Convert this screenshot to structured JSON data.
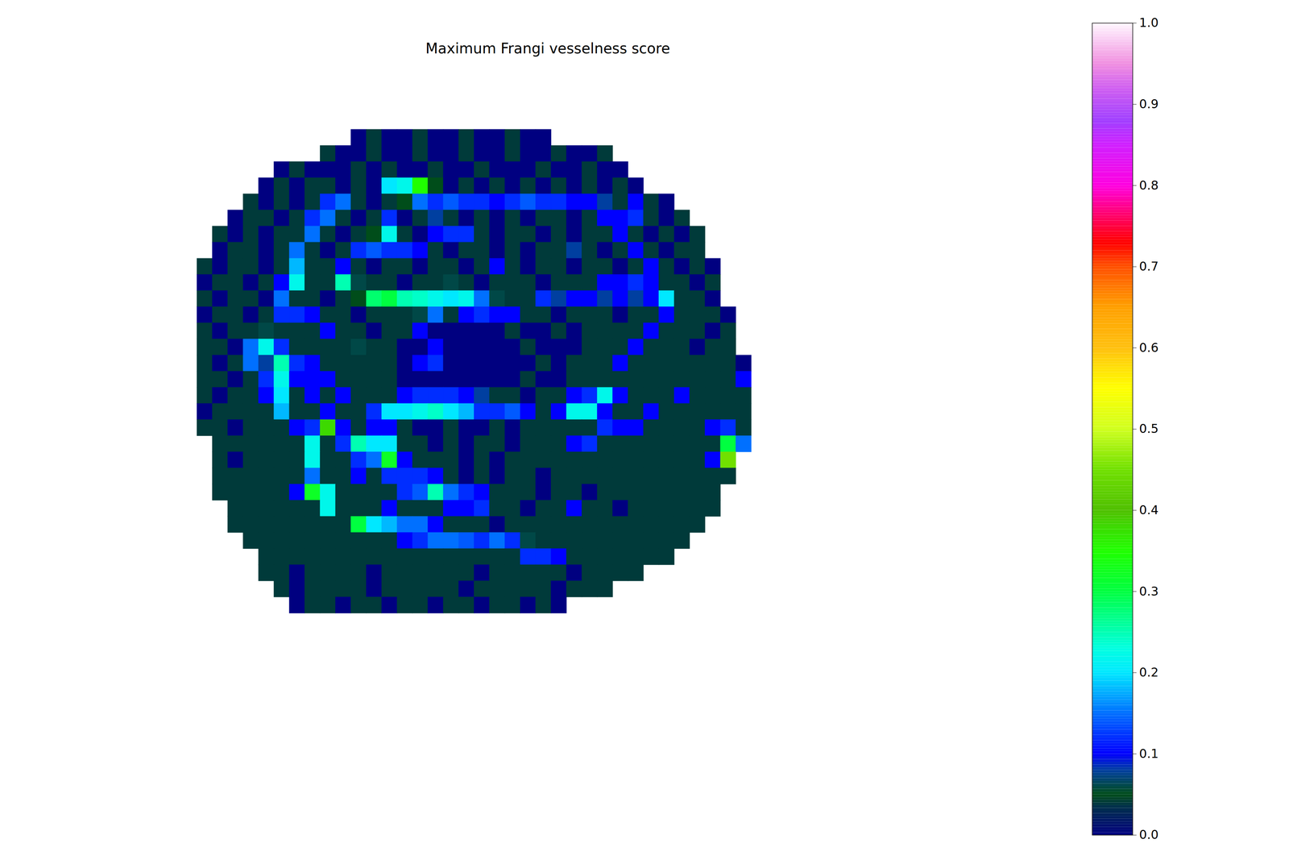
{
  "chart_data": {
    "type": "heatmap",
    "title": "Maximum Frangi vesselness score",
    "tick_labels": false,
    "cells": [
      [
        null,
        null,
        null,
        null,
        null,
        null,
        null,
        null,
        null,
        null,
        0,
        0.04,
        0,
        0,
        0.04,
        0,
        0,
        0.04,
        0,
        0,
        0.04,
        0,
        0,
        null,
        null,
        null,
        null,
        null,
        null,
        null,
        null,
        null,
        null,
        null,
        null,
        null
      ],
      [
        null,
        null,
        null,
        null,
        null,
        null,
        null,
        null,
        0.04,
        0,
        0,
        0.04,
        0,
        0,
        0.04,
        0,
        0,
        0.04,
        0,
        0,
        0.04,
        0,
        0,
        0.04,
        0,
        0,
        0.04,
        null,
        null,
        null,
        null,
        null,
        null,
        null,
        null,
        null
      ],
      [
        null,
        null,
        null,
        null,
        null,
        0,
        0.04,
        0,
        0,
        0,
        0.04,
        0,
        0.04,
        0,
        0,
        0.04,
        0,
        0,
        0.04,
        0,
        0,
        0,
        0.04,
        0,
        0,
        0.04,
        0,
        0,
        null,
        null,
        null,
        null,
        null,
        null,
        null,
        null
      ],
      [
        null,
        null,
        null,
        null,
        0,
        0.04,
        0,
        0.04,
        0.04,
        0,
        0.04,
        0,
        0.2,
        0.22,
        0.35,
        0.05,
        0,
        0.04,
        0,
        0.04,
        0,
        0.04,
        0,
        0.04,
        0,
        0.04,
        0,
        0.04,
        0,
        null,
        null,
        null,
        null,
        null,
        null,
        null
      ],
      [
        null,
        null,
        null,
        0.04,
        0,
        0.04,
        0,
        0.04,
        0.12,
        0.15,
        0.04,
        0,
        0.04,
        0.05,
        0.15,
        0.12,
        0.14,
        0.12,
        0.12,
        0.1,
        0.12,
        0.14,
        0.12,
        0.12,
        0.1,
        0.1,
        0.08,
        0.04,
        0.1,
        0.04,
        0,
        null,
        null,
        null,
        null,
        null
      ],
      [
        null,
        null,
        0,
        0.04,
        0.04,
        0,
        0.04,
        0.12,
        0.15,
        0.04,
        0,
        0.04,
        0.12,
        0,
        0.04,
        0.08,
        0.04,
        0,
        0.04,
        0,
        0.04,
        0,
        0.04,
        0.04,
        0,
        0.04,
        0.1,
        0.1,
        0.12,
        0.04,
        0,
        0.04,
        null,
        null,
        null,
        null
      ],
      [
        null,
        0.04,
        0,
        0.04,
        0,
        0.04,
        0.04,
        0.15,
        0.04,
        0,
        0.04,
        0.05,
        0.22,
        0.04,
        0,
        0.1,
        0.12,
        0.12,
        0.04,
        0,
        0.04,
        0.04,
        0,
        0.04,
        0,
        0.04,
        0.04,
        0.1,
        0.04,
        0,
        0.04,
        0,
        0.04,
        null,
        null,
        null
      ],
      [
        null,
        0,
        0.04,
        0.04,
        0,
        0.04,
        0.15,
        0.04,
        0,
        0.04,
        0.12,
        0.14,
        0.12,
        0.12,
        0.1,
        0.04,
        0,
        0.04,
        0.04,
        0,
        0.04,
        0,
        0.04,
        0.04,
        0.08,
        0.04,
        0,
        0.04,
        0.1,
        0.04,
        0,
        0.04,
        0.04,
        null,
        null,
        null
      ],
      [
        0.04,
        0,
        0.04,
        0.04,
        0,
        0.04,
        0.18,
        0.04,
        0.04,
        0.1,
        0.04,
        0,
        0.04,
        0.04,
        0,
        0.04,
        0.04,
        0,
        0.04,
        0.1,
        0.04,
        0,
        0.04,
        0.04,
        0,
        0.04,
        0.04,
        0,
        0.04,
        0.1,
        0.04,
        0,
        0.04,
        0,
        null,
        null
      ],
      [
        0,
        0.04,
        0.04,
        0,
        0.04,
        0.1,
        0.22,
        0.04,
        0.04,
        0.25,
        0.06,
        0.04,
        0.04,
        0,
        0.04,
        0.04,
        0.06,
        0.04,
        0,
        0.04,
        0.04,
        0.04,
        0,
        0.04,
        0.04,
        0.04,
        0.1,
        0.1,
        0.12,
        0.1,
        0.04,
        0.04,
        0,
        0.04,
        null,
        null
      ],
      [
        0.04,
        0,
        0.04,
        0.04,
        0,
        0.15,
        0.04,
        0.04,
        0,
        0.04,
        0.05,
        0.28,
        0.3,
        0.25,
        0.24,
        0.22,
        0.2,
        0.22,
        0.15,
        0.06,
        0.04,
        0.04,
        0.12,
        0.08,
        0.1,
        0.1,
        0.08,
        0.1,
        0.08,
        0.1,
        0.2,
        0.04,
        0.04,
        0,
        null,
        null
      ],
      [
        0,
        0.04,
        0.04,
        0,
        0.04,
        0.12,
        0.12,
        0.1,
        0.04,
        0.04,
        0,
        0.04,
        0.04,
        0.04,
        0.06,
        0.15,
        0.04,
        0.1,
        0.12,
        0.1,
        0.1,
        0.04,
        0.04,
        0,
        0.04,
        0.04,
        0.04,
        0,
        0.04,
        0.04,
        0.1,
        0.04,
        0.04,
        0.04,
        0,
        null
      ],
      [
        0.04,
        0,
        0.04,
        0.04,
        0.06,
        0.04,
        0.04,
        0.04,
        0.1,
        0.04,
        0.04,
        0,
        0.04,
        0.04,
        0.1,
        0,
        0,
        0,
        0,
        0,
        0.04,
        0,
        0,
        0.04,
        0,
        0.04,
        0.04,
        0.04,
        0.04,
        0.1,
        0.04,
        0.04,
        0.04,
        0,
        0.04,
        null
      ],
      [
        0.04,
        0.04,
        0,
        0.15,
        0.22,
        0.12,
        0.04,
        0.04,
        0.04,
        0.04,
        0.06,
        0.04,
        0.04,
        0,
        0,
        0.1,
        0,
        0,
        0,
        0,
        0,
        0.04,
        0,
        0,
        0,
        0.04,
        0.04,
        0.04,
        0.1,
        0.04,
        0.04,
        0.04,
        0,
        0.04,
        0.04,
        null
      ],
      [
        0.04,
        0,
        0.04,
        0.15,
        0.08,
        0.25,
        0.12,
        0.1,
        0.04,
        0.04,
        0.04,
        0.04,
        0.04,
        0,
        0.1,
        0.12,
        0,
        0,
        0,
        0,
        0,
        0,
        0.04,
        0,
        0.04,
        0.04,
        0.04,
        0.1,
        0.04,
        0.04,
        0.04,
        0.04,
        0.04,
        0.04,
        0.04,
        0
      ],
      [
        0.04,
        0.04,
        0,
        0.04,
        0.12,
        0.22,
        0.1,
        0.1,
        0.1,
        0.04,
        0.04,
        0.04,
        0.04,
        0,
        0,
        0,
        0,
        0,
        0,
        0,
        0,
        0.04,
        0,
        0,
        0.04,
        0.04,
        0.04,
        0.04,
        0.04,
        0.04,
        0.04,
        0.04,
        0.04,
        0.04,
        0.04,
        0.1
      ],
      [
        0.04,
        0,
        0.04,
        0.04,
        0.1,
        0.2,
        0.04,
        0.1,
        0.04,
        0.1,
        0.04,
        0.04,
        0.04,
        0.1,
        0.12,
        0.12,
        0.12,
        0.1,
        0.08,
        0.04,
        0.04,
        0,
        0.04,
        0.04,
        0.1,
        0.12,
        0.22,
        0.1,
        0.04,
        0.04,
        0.04,
        0.1,
        0.04,
        0.04,
        0.04,
        0.04
      ],
      [
        0,
        0.04,
        0.04,
        0.04,
        0.04,
        0.18,
        0.04,
        0.04,
        0.1,
        0.04,
        0.04,
        0.12,
        0.2,
        0.2,
        0.22,
        0.24,
        0.2,
        0.18,
        0.12,
        0.12,
        0.14,
        0.1,
        0.04,
        0.1,
        0.22,
        0.22,
        0.1,
        0.04,
        0.04,
        0.1,
        0.04,
        0.04,
        0.04,
        0.04,
        0.04,
        0.04
      ],
      [
        0.04,
        0.04,
        0,
        0.04,
        0.04,
        0.04,
        0.1,
        0.12,
        0.38,
        0.1,
        0.04,
        0.1,
        0.1,
        0.04,
        0,
        0,
        0.04,
        0,
        0,
        0.04,
        0,
        0.04,
        0.04,
        0.04,
        0.04,
        0.04,
        0.12,
        0.1,
        0.1,
        0.04,
        0.04,
        0.04,
        0.04,
        0.1,
        0.12,
        0.04
      ],
      [
        null,
        0.04,
        0.04,
        0.04,
        0.04,
        0.04,
        0.04,
        0.22,
        0.04,
        0.12,
        0.25,
        0.2,
        0.2,
        0.04,
        0.04,
        0,
        0.04,
        0,
        0.04,
        0.04,
        0,
        0.04,
        0.04,
        0.04,
        0.1,
        0.12,
        0.04,
        0.04,
        0.04,
        0.04,
        0.04,
        0.04,
        0.04,
        0.04,
        0.3,
        0.15
      ],
      [
        null,
        0.04,
        0,
        0.04,
        0.04,
        0.04,
        0.04,
        0.22,
        0.04,
        0.04,
        0.12,
        0.15,
        0.32,
        0.1,
        0.04,
        0.04,
        0.04,
        0,
        0.04,
        0,
        0.04,
        0.04,
        0.04,
        0.04,
        0.04,
        0.04,
        0.04,
        0.04,
        0.04,
        0.04,
        0.04,
        0.04,
        0.04,
        0.1,
        0.45,
        null
      ],
      [
        null,
        0.04,
        0.04,
        0.04,
        0.04,
        0.04,
        0.04,
        0.15,
        0.04,
        0.04,
        0.1,
        0.04,
        0.12,
        0.12,
        0.12,
        0.1,
        0.04,
        0,
        0.04,
        0,
        0.04,
        0.04,
        0,
        0.04,
        0.04,
        0.04,
        0.04,
        0.04,
        0.04,
        0.04,
        0.04,
        0.04,
        0.04,
        0.04,
        0.04,
        null
      ],
      [
        null,
        0.04,
        0.04,
        0.04,
        0.04,
        0.04,
        0.1,
        0.32,
        0.22,
        0.04,
        0.04,
        0.04,
        0.04,
        0.12,
        0.14,
        0.25,
        0.15,
        0.12,
        0.1,
        0.04,
        0.04,
        0.04,
        0,
        0.04,
        0.04,
        0,
        0.04,
        0.04,
        0.04,
        0.04,
        0.04,
        0.04,
        0.04,
        0.04,
        null,
        null
      ],
      [
        null,
        null,
        0.04,
        0.04,
        0.04,
        0.04,
        0.04,
        0.04,
        0.22,
        0.04,
        0.04,
        0.04,
        0.1,
        0.04,
        0.04,
        0.04,
        0.1,
        0.1,
        0.12,
        0.04,
        0.04,
        0,
        0.04,
        0.04,
        0.1,
        0.04,
        0.04,
        0,
        0.04,
        0.04,
        0.04,
        0.04,
        0.04,
        0.04,
        null,
        null
      ],
      [
        null,
        null,
        0.04,
        0.04,
        0.04,
        0.04,
        0.04,
        0.04,
        0.04,
        0.04,
        0.3,
        0.2,
        0.18,
        0.15,
        0.15,
        0.1,
        0.04,
        0.04,
        0.04,
        0,
        0.04,
        0.04,
        0.04,
        0.04,
        0.04,
        0.04,
        0.04,
        0.04,
        0.04,
        0.04,
        0.04,
        0.04,
        0.04,
        null,
        null,
        null
      ],
      [
        null,
        null,
        null,
        0.04,
        0.04,
        0.04,
        0.04,
        0.04,
        0.04,
        0.04,
        0.04,
        0.04,
        0.04,
        0.1,
        0.12,
        0.15,
        0.15,
        0.14,
        0.12,
        0.15,
        0.12,
        0.06,
        0.04,
        0.04,
        0.04,
        0.04,
        0.04,
        0.04,
        0.04,
        0.04,
        0.04,
        0.04,
        null,
        null,
        null,
        null
      ],
      [
        null,
        null,
        null,
        null,
        0.04,
        0.04,
        0.04,
        0.04,
        0.04,
        0.04,
        0.04,
        0.04,
        0.04,
        0.04,
        0.04,
        0.04,
        0.04,
        0.04,
        0.04,
        0.04,
        0.04,
        0.12,
        0.12,
        0.1,
        0.04,
        0.04,
        0.04,
        0.04,
        0.04,
        0.04,
        0.04,
        null,
        null,
        null,
        null,
        null
      ],
      [
        null,
        null,
        null,
        null,
        0.04,
        0.04,
        0,
        0.04,
        0.04,
        0.04,
        0.04,
        0,
        0.04,
        0.04,
        0.04,
        0.04,
        0.04,
        0.04,
        0,
        0.04,
        0.04,
        0.04,
        0.04,
        0.04,
        0,
        0.04,
        0.04,
        0.04,
        0.04,
        null,
        null,
        null,
        null,
        null,
        null,
        null
      ],
      [
        null,
        null,
        null,
        null,
        null,
        0.04,
        0,
        0.04,
        0.04,
        0.04,
        0.04,
        0,
        0.04,
        0.04,
        0.04,
        0.04,
        0.04,
        0,
        0.04,
        0.04,
        0.04,
        0.04,
        0.04,
        0,
        0.04,
        0.04,
        0.04,
        null,
        null,
        null,
        null,
        null,
        null,
        null,
        null,
        null
      ],
      [
        null,
        null,
        null,
        null,
        null,
        null,
        0,
        0.04,
        0.04,
        0,
        0.04,
        0.04,
        0,
        0.04,
        0.04,
        0,
        0.04,
        0.04,
        0,
        0.04,
        0.04,
        0,
        0.04,
        0,
        null,
        null,
        null,
        null,
        null,
        null,
        null,
        null,
        null,
        null,
        null,
        null
      ]
    ],
    "colorbar": {
      "range": [
        0,
        1
      ],
      "ticks": [
        {
          "value": 0,
          "label": "0.0"
        },
        0.1,
        0.2,
        0.3,
        0.4,
        0.5,
        0.6,
        0.7,
        0.8,
        0.9,
        {
          "value": 1,
          "label": "1.0"
        }
      ]
    }
  }
}
